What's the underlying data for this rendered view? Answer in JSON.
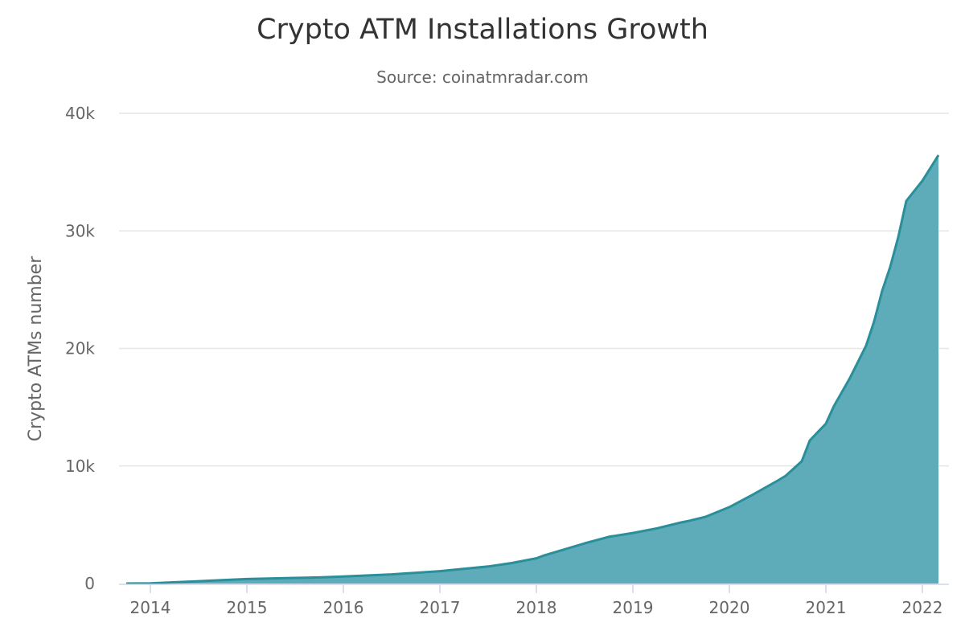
{
  "chart_data": {
    "type": "area",
    "title": "Crypto ATM Installations Growth",
    "subtitle": "Source: coinatmradar.com",
    "xlabel": "",
    "ylabel": "Crypto ATMs number",
    "ylim": [
      0,
      40000
    ],
    "yticks": [
      0,
      10000,
      20000,
      30000,
      40000
    ],
    "ytick_labels": [
      "0",
      "10k",
      "20k",
      "30k",
      "40k"
    ],
    "xticks": [
      "2014",
      "2015",
      "2016",
      "2017",
      "2018",
      "2019",
      "2020",
      "2021",
      "2022"
    ],
    "grid": true,
    "legend": "none",
    "colors": {
      "line": "#2a8f9b",
      "fill": "#5eabb9",
      "grid": "#e6e6e6"
    },
    "x": [
      "2013-10",
      "2014-01",
      "2014-07",
      "2015-01",
      "2015-07",
      "2015-10",
      "2016-01",
      "2016-07",
      "2017-01",
      "2017-07",
      "2017-10",
      "2018-01",
      "2018-02",
      "2018-07",
      "2018-10",
      "2019-01",
      "2019-04",
      "2019-07",
      "2019-08",
      "2019-10",
      "2020-01",
      "2020-04",
      "2020-07",
      "2020-08",
      "2020-10",
      "2020-11",
      "2021-01",
      "2021-02",
      "2021-04",
      "2021-06",
      "2021-07",
      "2021-08",
      "2021-09",
      "2021-10",
      "2021-11",
      "2022-01",
      "2022-03"
    ],
    "values": [
      0,
      20,
      200,
      380,
      480,
      520,
      600,
      780,
      1050,
      1450,
      1750,
      2150,
      2400,
      3420,
      3970,
      4300,
      4700,
      5200,
      5330,
      5670,
      6500,
      7600,
      8750,
      9160,
      10400,
      12170,
      13600,
      15100,
      17500,
      20240,
      22300,
      24900,
      26940,
      29470,
      32550,
      34260,
      36440
    ]
  }
}
